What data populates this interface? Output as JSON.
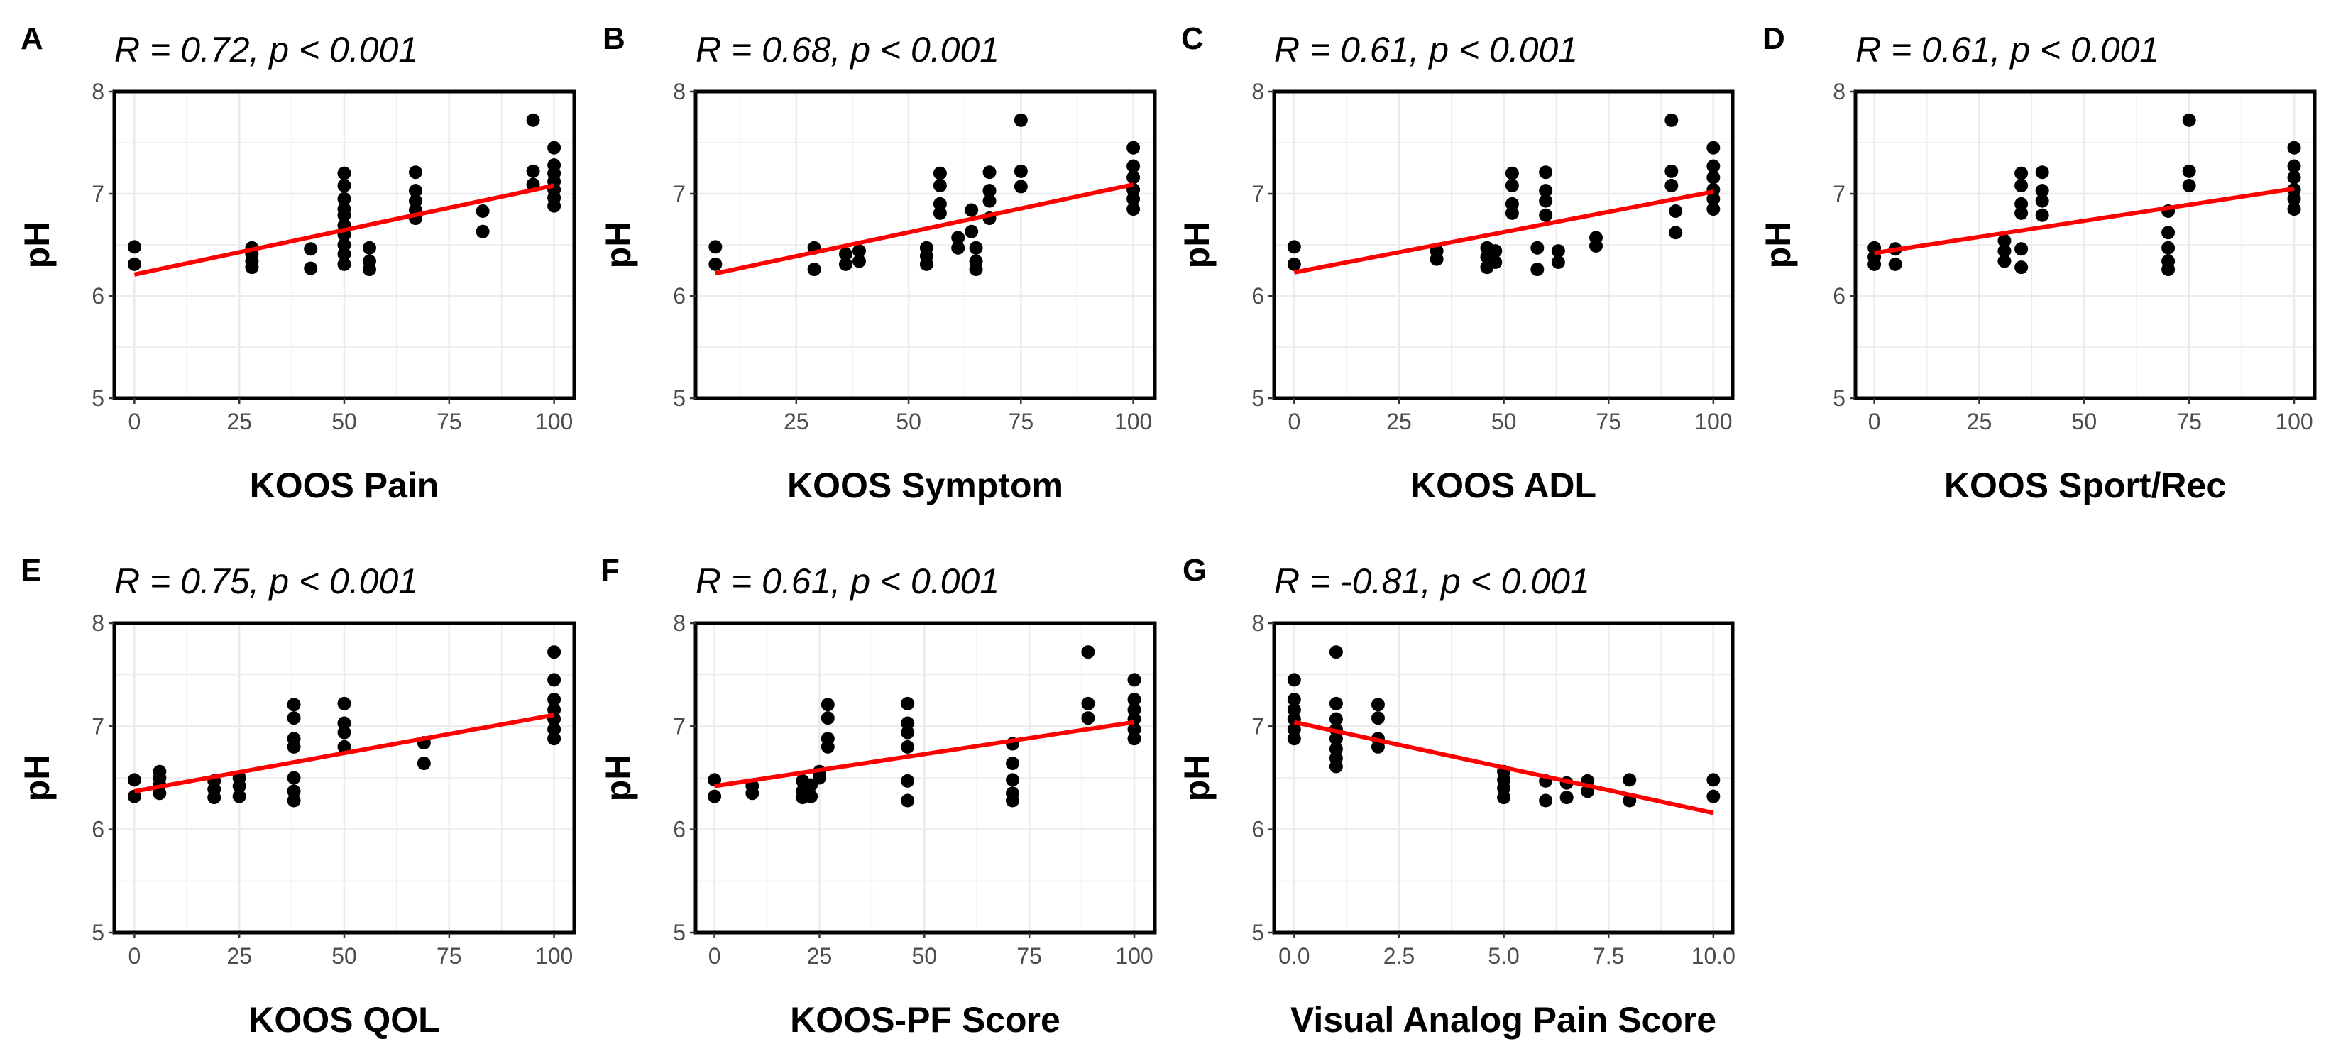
{
  "chart_data": [
    {
      "type": "scatter",
      "panel": "A",
      "title": "R = 0.72, p < 0.001",
      "xlabel": "KOOS Pain",
      "ylabel": "pH",
      "xlim": [
        -4.8,
        104.8
      ],
      "ylim": [
        5,
        8
      ],
      "x_ticks": [
        0,
        25,
        50,
        75,
        100
      ],
      "x_tick_labels": [
        "0",
        "25",
        "50",
        "75",
        "100"
      ],
      "y_ticks": [
        5,
        6,
        7,
        8
      ],
      "y_tick_labels": [
        "5",
        "6",
        "7",
        "8"
      ],
      "grid": true,
      "points": [
        {
          "x": 0,
          "ph": [
            6.48,
            6.31
          ]
        },
        {
          "x": 28,
          "ph": [
            6.47,
            6.41,
            6.34,
            6.28
          ]
        },
        {
          "x": 42,
          "ph": [
            6.46,
            6.27
          ]
        },
        {
          "x": 50,
          "ph": [
            7.2,
            7.08,
            6.95,
            6.85,
            6.79,
            6.69,
            6.6,
            6.5,
            6.41,
            6.31
          ]
        },
        {
          "x": 56,
          "ph": [
            6.47,
            6.34,
            6.26
          ]
        },
        {
          "x": 67,
          "ph": [
            7.21,
            7.03,
            6.93,
            6.84,
            6.76
          ]
        },
        {
          "x": 83,
          "ph": [
            6.83,
            6.63
          ]
        },
        {
          "x": 95,
          "ph": [
            7.72,
            7.22,
            7.09
          ]
        },
        {
          "x": 100,
          "ph": [
            7.45,
            7.28,
            7.2,
            7.12,
            7.04,
            6.96,
            6.88
          ]
        }
      ],
      "fit": {
        "x": [
          0,
          100
        ],
        "y": [
          6.21,
          7.08
        ]
      }
    },
    {
      "type": "scatter",
      "panel": "B",
      "title": "R = 0.68, p < 0.001",
      "xlabel": "KOOS Symptom",
      "ylabel": "pH",
      "xlim": [
        2.6,
        104.8
      ],
      "ylim": [
        5,
        8
      ],
      "x_ticks": [
        25,
        50,
        75,
        100
      ],
      "x_tick_labels": [
        "25",
        "50",
        "75",
        "100"
      ],
      "y_ticks": [
        5,
        6,
        7,
        8
      ],
      "y_tick_labels": [
        "5",
        "6",
        "7",
        "8"
      ],
      "grid": true,
      "points": [
        {
          "x": 7,
          "ph": [
            6.48,
            6.31
          ]
        },
        {
          "x": 29,
          "ph": [
            6.47,
            6.26
          ]
        },
        {
          "x": 36,
          "ph": [
            6.41,
            6.31
          ]
        },
        {
          "x": 39,
          "ph": [
            6.44,
            6.34
          ]
        },
        {
          "x": 54,
          "ph": [
            6.47,
            6.39,
            6.31
          ]
        },
        {
          "x": 57,
          "ph": [
            7.2,
            7.08,
            6.9,
            6.81
          ]
        },
        {
          "x": 61,
          "ph": [
            6.57,
            6.47
          ]
        },
        {
          "x": 64,
          "ph": [
            6.84,
            6.63
          ]
        },
        {
          "x": 65,
          "ph": [
            6.47,
            6.34,
            6.26
          ]
        },
        {
          "x": 68,
          "ph": [
            7.21,
            7.03,
            6.93,
            6.76
          ]
        },
        {
          "x": 75,
          "ph": [
            7.72,
            7.22,
            7.07
          ]
        },
        {
          "x": 100,
          "ph": [
            7.45,
            7.27,
            7.16,
            7.04,
            6.95,
            6.85
          ]
        }
      ],
      "fit": {
        "x": [
          7,
          100
        ],
        "y": [
          6.22,
          7.09
        ]
      }
    },
    {
      "type": "scatter",
      "panel": "C",
      "title": "R = 0.61, p < 0.001",
      "xlabel": "KOOS ADL",
      "ylabel": "pH",
      "xlim": [
        -4.8,
        104.6
      ],
      "ylim": [
        5,
        8
      ],
      "x_ticks": [
        0,
        25,
        50,
        75,
        100
      ],
      "x_tick_labels": [
        "0",
        "25",
        "50",
        "75",
        "100"
      ],
      "y_ticks": [
        5,
        6,
        7,
        8
      ],
      "y_tick_labels": [
        "5",
        "6",
        "7",
        "8"
      ],
      "grid": true,
      "points": [
        {
          "x": 0,
          "ph": [
            6.48,
            6.31
          ]
        },
        {
          "x": 34,
          "ph": [
            6.44,
            6.36
          ]
        },
        {
          "x": 46,
          "ph": [
            6.47,
            6.38,
            6.28
          ]
        },
        {
          "x": 48,
          "ph": [
            6.44,
            6.33
          ]
        },
        {
          "x": 52,
          "ph": [
            7.2,
            7.08,
            6.9,
            6.81
          ]
        },
        {
          "x": 58,
          "ph": [
            6.47,
            6.26
          ]
        },
        {
          "x": 60,
          "ph": [
            7.21,
            7.03,
            6.93,
            6.79
          ]
        },
        {
          "x": 63,
          "ph": [
            6.44,
            6.33
          ]
        },
        {
          "x": 72,
          "ph": [
            6.57,
            6.49
          ]
        },
        {
          "x": 90,
          "ph": [
            7.72,
            7.22,
            7.08
          ]
        },
        {
          "x": 91,
          "ph": [
            6.83,
            6.62
          ]
        },
        {
          "x": 100,
          "ph": [
            7.45,
            7.27,
            7.16,
            7.04,
            6.95,
            6.85
          ]
        }
      ],
      "fit": {
        "x": [
          0,
          100
        ],
        "y": [
          6.23,
          7.02
        ]
      }
    },
    {
      "type": "scatter",
      "panel": "D",
      "title": "R = 0.61, p < 0.001",
      "xlabel": "KOOS Sport/Rec",
      "ylabel": "pH",
      "xlim": [
        -4.5,
        104.9
      ],
      "ylim": [
        5,
        8
      ],
      "x_ticks": [
        0,
        25,
        50,
        75,
        100
      ],
      "x_tick_labels": [
        "0",
        "25",
        "50",
        "75",
        "100"
      ],
      "y_ticks": [
        5,
        6,
        7,
        8
      ],
      "y_tick_labels": [
        "5",
        "6",
        "7",
        "8"
      ],
      "grid": true,
      "points": [
        {
          "x": 0,
          "ph": [
            6.47,
            6.38,
            6.31
          ]
        },
        {
          "x": 5,
          "ph": [
            6.46,
            6.31
          ]
        },
        {
          "x": 31,
          "ph": [
            6.54,
            6.44,
            6.34
          ]
        },
        {
          "x": 35,
          "ph": [
            7.2,
            7.08,
            6.9,
            6.81,
            6.46,
            6.28
          ]
        },
        {
          "x": 40,
          "ph": [
            7.21,
            7.03,
            6.93,
            6.79
          ]
        },
        {
          "x": 70,
          "ph": [
            6.83,
            6.62,
            6.47,
            6.34,
            6.26
          ]
        },
        {
          "x": 75,
          "ph": [
            7.72,
            7.22,
            7.08
          ]
        },
        {
          "x": 100,
          "ph": [
            7.45,
            7.27,
            7.16,
            7.04,
            6.95,
            6.85
          ]
        }
      ],
      "fit": {
        "x": [
          0,
          100
        ],
        "y": [
          6.42,
          7.05
        ]
      }
    },
    {
      "type": "scatter",
      "panel": "E",
      "title": "R = 0.75, p < 0.001",
      "xlabel": "KOOS QOL",
      "ylabel": "pH",
      "xlim": [
        -4.8,
        104.8
      ],
      "ylim": [
        5,
        8
      ],
      "x_ticks": [
        0,
        25,
        50,
        75,
        100
      ],
      "x_tick_labels": [
        "0",
        "25",
        "50",
        "75",
        "100"
      ],
      "y_ticks": [
        5,
        6,
        7,
        8
      ],
      "y_tick_labels": [
        "5",
        "6",
        "7",
        "8"
      ],
      "grid": true,
      "points": [
        {
          "x": 0,
          "ph": [
            6.48,
            6.32
          ]
        },
        {
          "x": 6,
          "ph": [
            6.56,
            6.5,
            6.43,
            6.35
          ]
        },
        {
          "x": 19,
          "ph": [
            6.47,
            6.39,
            6.31
          ]
        },
        {
          "x": 25,
          "ph": [
            6.5,
            6.42,
            6.32
          ]
        },
        {
          "x": 38,
          "ph": [
            7.21,
            7.08,
            6.88,
            6.8,
            6.5,
            6.37,
            6.28
          ]
        },
        {
          "x": 50,
          "ph": [
            7.22,
            7.03,
            6.94,
            6.8
          ]
        },
        {
          "x": 69,
          "ph": [
            6.84,
            6.64
          ]
        },
        {
          "x": 100,
          "ph": [
            7.72,
            7.45,
            7.26,
            7.16,
            7.07,
            6.97,
            6.88
          ]
        }
      ],
      "fit": {
        "x": [
          0,
          100
        ],
        "y": [
          6.37,
          7.11
        ]
      }
    },
    {
      "type": "scatter",
      "panel": "F",
      "title": "R = 0.61, p < 0.001",
      "xlabel": "KOOS-PF Score",
      "ylabel": "pH",
      "xlim": [
        -4.5,
        104.9
      ],
      "ylim": [
        5,
        8
      ],
      "x_ticks": [
        0,
        25,
        50,
        75,
        100
      ],
      "x_tick_labels": [
        "0",
        "25",
        "50",
        "75",
        "100"
      ],
      "y_ticks": [
        5,
        6,
        7,
        8
      ],
      "y_tick_labels": [
        "5",
        "6",
        "7",
        "8"
      ],
      "grid": true,
      "points": [
        {
          "x": 0,
          "ph": [
            6.48,
            6.32
          ]
        },
        {
          "x": 9,
          "ph": [
            6.42,
            6.35
          ]
        },
        {
          "x": 21,
          "ph": [
            6.47,
            6.37,
            6.31
          ]
        },
        {
          "x": 23,
          "ph": [
            6.43,
            6.32
          ]
        },
        {
          "x": 25,
          "ph": [
            6.56,
            6.5
          ]
        },
        {
          "x": 27,
          "ph": [
            7.21,
            7.08,
            6.88,
            6.8
          ]
        },
        {
          "x": 46,
          "ph": [
            7.22,
            7.03,
            6.94,
            6.8,
            6.47,
            6.28
          ]
        },
        {
          "x": 71,
          "ph": [
            6.83,
            6.64,
            6.48,
            6.35,
            6.28
          ]
        },
        {
          "x": 89,
          "ph": [
            7.72,
            7.22,
            7.08
          ]
        },
        {
          "x": 100,
          "ph": [
            7.45,
            7.26,
            7.16,
            7.07,
            6.97,
            6.88
          ]
        }
      ],
      "fit": {
        "x": [
          0,
          100
        ],
        "y": [
          6.42,
          7.04
        ]
      }
    },
    {
      "type": "scatter",
      "panel": "G",
      "title": "R = -0.81, p < 0.001",
      "xlabel": "Visual Analog Pain Score",
      "ylabel": "pH",
      "xlim": [
        -0.48,
        10.46
      ],
      "ylim": [
        5,
        8
      ],
      "x_ticks": [
        0,
        2.5,
        5,
        7.5,
        10
      ],
      "x_tick_labels": [
        "0.0",
        "2.5",
        "5.0",
        "7.5",
        "10.0"
      ],
      "y_ticks": [
        5,
        6,
        7,
        8
      ],
      "y_tick_labels": [
        "5",
        "6",
        "7",
        "8"
      ],
      "grid": true,
      "points": [
        {
          "x": 0,
          "ph": [
            7.45,
            7.26,
            7.16,
            7.07,
            6.97,
            6.88
          ]
        },
        {
          "x": 1,
          "ph": [
            7.72,
            7.22,
            7.07,
            6.97,
            6.88,
            6.78,
            6.69,
            6.61
          ]
        },
        {
          "x": 2,
          "ph": [
            7.21,
            7.08,
            6.88,
            6.8
          ]
        },
        {
          "x": 5,
          "ph": [
            6.56,
            6.48,
            6.4,
            6.31
          ]
        },
        {
          "x": 6,
          "ph": [
            6.47,
            6.28
          ]
        },
        {
          "x": 6.5,
          "ph": [
            6.45,
            6.31
          ]
        },
        {
          "x": 7,
          "ph": [
            6.47,
            6.37
          ]
        },
        {
          "x": 8,
          "ph": [
            6.48,
            6.28
          ]
        },
        {
          "x": 10,
          "ph": [
            6.48,
            6.32
          ]
        }
      ],
      "fit": {
        "x": [
          0,
          10
        ],
        "y": [
          7.04,
          6.16
        ]
      }
    }
  ],
  "colors": {
    "points": "#000000",
    "fit_line": "#ff0000",
    "grid": "#ebebeb",
    "tick_text": "#4d4d4d"
  }
}
